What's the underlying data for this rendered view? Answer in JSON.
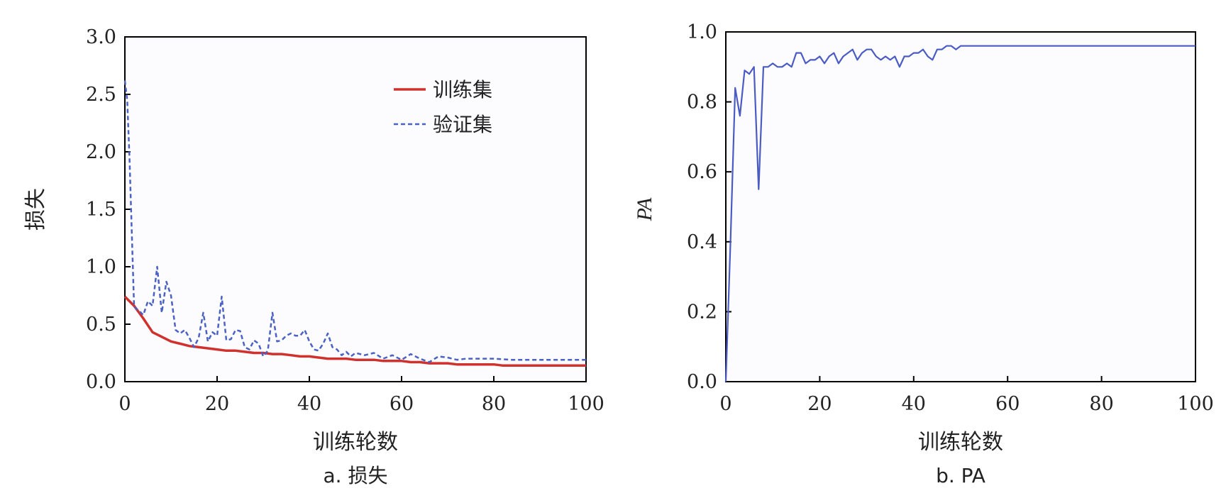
{
  "chart_data": [
    {
      "type": "line",
      "caption": "a. 损失",
      "xlabel": "训练轮数",
      "ylabel": "损失",
      "xlim": [
        0,
        100
      ],
      "ylim": [
        0,
        3.0
      ],
      "xticks": [
        0,
        20,
        40,
        60,
        80,
        100
      ],
      "yticks": [
        "0.0",
        "0.5",
        "1.0",
        "1.5",
        "2.0",
        "2.5",
        "3.0"
      ],
      "legend_position": "top-right",
      "series": [
        {
          "name": "训练集",
          "color": "#d0312d",
          "style": "solid",
          "x": [
            0,
            2,
            4,
            6,
            8,
            10,
            12,
            14,
            16,
            18,
            20,
            22,
            24,
            26,
            28,
            30,
            32,
            34,
            36,
            38,
            40,
            42,
            44,
            46,
            48,
            50,
            52,
            54,
            56,
            58,
            60,
            62,
            64,
            66,
            68,
            70,
            72,
            74,
            76,
            78,
            80,
            82,
            84,
            86,
            88,
            90,
            92,
            94,
            96,
            98,
            100
          ],
          "y": [
            0.74,
            0.66,
            0.55,
            0.43,
            0.39,
            0.35,
            0.33,
            0.31,
            0.3,
            0.29,
            0.28,
            0.27,
            0.27,
            0.26,
            0.25,
            0.25,
            0.24,
            0.24,
            0.23,
            0.22,
            0.22,
            0.21,
            0.2,
            0.2,
            0.2,
            0.19,
            0.19,
            0.19,
            0.18,
            0.18,
            0.18,
            0.17,
            0.17,
            0.16,
            0.16,
            0.16,
            0.15,
            0.15,
            0.15,
            0.15,
            0.15,
            0.14,
            0.14,
            0.14,
            0.14,
            0.14,
            0.14,
            0.14,
            0.14,
            0.14,
            0.14
          ]
        },
        {
          "name": "验证集",
          "color": "#4a62c4",
          "style": "dashed",
          "x": [
            0,
            0.5,
            1,
            2,
            3,
            4,
            5,
            6,
            7,
            8,
            9,
            10,
            11,
            12,
            13,
            14,
            15,
            16,
            17,
            18,
            19,
            20,
            21,
            22,
            23,
            24,
            25,
            26,
            27,
            28,
            29,
            30,
            31,
            32,
            33,
            34,
            35,
            36,
            37,
            38,
            39,
            40,
            41,
            42,
            43,
            44,
            45,
            46,
            47,
            48,
            49,
            50,
            52,
            54,
            56,
            58,
            60,
            62,
            64,
            66,
            68,
            70,
            72,
            74,
            76,
            78,
            80,
            84,
            88,
            92,
            96,
            100
          ],
          "y": [
            2.62,
            2.45,
            1.95,
            0.65,
            0.62,
            0.58,
            0.7,
            0.66,
            1.0,
            0.6,
            0.87,
            0.75,
            0.45,
            0.42,
            0.45,
            0.38,
            0.3,
            0.38,
            0.6,
            0.35,
            0.43,
            0.4,
            0.74,
            0.36,
            0.37,
            0.45,
            0.44,
            0.3,
            0.28,
            0.36,
            0.33,
            0.22,
            0.27,
            0.6,
            0.35,
            0.36,
            0.4,
            0.42,
            0.4,
            0.4,
            0.45,
            0.35,
            0.28,
            0.27,
            0.33,
            0.42,
            0.3,
            0.28,
            0.23,
            0.26,
            0.22,
            0.25,
            0.23,
            0.25,
            0.2,
            0.23,
            0.19,
            0.24,
            0.2,
            0.17,
            0.22,
            0.21,
            0.19,
            0.2,
            0.2,
            0.2,
            0.2,
            0.19,
            0.19,
            0.19,
            0.19,
            0.19
          ]
        }
      ]
    },
    {
      "type": "line",
      "caption": "b. PA",
      "xlabel": "训练轮数",
      "ylabel": "PA",
      "xlim": [
        0,
        100
      ],
      "ylim": [
        0,
        1.0
      ],
      "xticks": [
        0,
        20,
        40,
        60,
        80,
        100
      ],
      "yticks": [
        "0.0",
        "0.2",
        "0.4",
        "0.6",
        "0.8",
        "1.0"
      ],
      "series": [
        {
          "color": "#4a5bc4",
          "style": "solid",
          "x": [
            0,
            1,
            2,
            3,
            4,
            5,
            6,
            7,
            8,
            9,
            10,
            11,
            12,
            13,
            14,
            15,
            16,
            17,
            18,
            19,
            20,
            21,
            22,
            23,
            24,
            25,
            26,
            27,
            28,
            29,
            30,
            31,
            32,
            33,
            34,
            35,
            36,
            37,
            38,
            39,
            40,
            41,
            42,
            43,
            44,
            45,
            46,
            47,
            48,
            49,
            50,
            52,
            54,
            56,
            58,
            60,
            62,
            64,
            66,
            68,
            70,
            72,
            74,
            76,
            78,
            80,
            82,
            84,
            86,
            88,
            90,
            92,
            94,
            96,
            98,
            100
          ],
          "y": [
            0.0,
            0.4,
            0.84,
            0.76,
            0.89,
            0.88,
            0.9,
            0.55,
            0.9,
            0.9,
            0.91,
            0.9,
            0.9,
            0.91,
            0.9,
            0.94,
            0.94,
            0.91,
            0.92,
            0.92,
            0.93,
            0.91,
            0.93,
            0.94,
            0.91,
            0.93,
            0.94,
            0.95,
            0.92,
            0.94,
            0.95,
            0.95,
            0.93,
            0.92,
            0.93,
            0.92,
            0.93,
            0.9,
            0.93,
            0.93,
            0.94,
            0.94,
            0.95,
            0.93,
            0.92,
            0.95,
            0.95,
            0.96,
            0.96,
            0.95,
            0.96,
            0.96,
            0.96,
            0.96,
            0.96,
            0.96,
            0.96,
            0.96,
            0.96,
            0.96,
            0.96,
            0.96,
            0.96,
            0.96,
            0.96,
            0.96,
            0.96,
            0.96,
            0.96,
            0.96,
            0.96,
            0.96,
            0.96,
            0.96,
            0.96,
            0.96
          ]
        }
      ]
    }
  ]
}
